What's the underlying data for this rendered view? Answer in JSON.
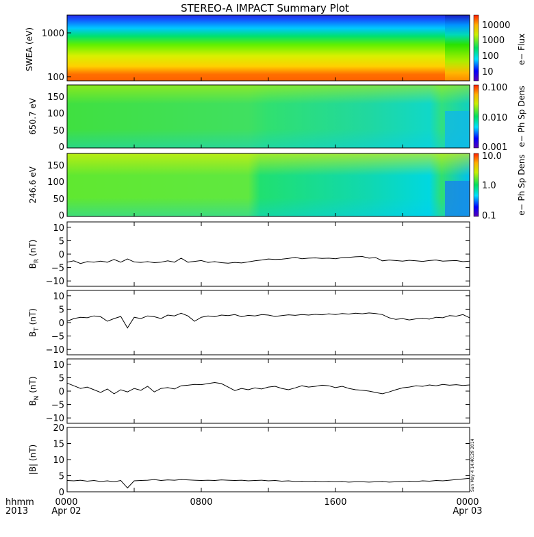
{
  "title": "STEREO-A IMPACT Summary Plot",
  "footer": {
    "hhmm": "hhmm",
    "year": "2013",
    "timestamp": "Sun May  4 14:40:29 2014"
  },
  "chart_data": [
    {
      "type": "heatmap",
      "id": "swea",
      "ylabel": "SWEA (eV)",
      "yscale": "log",
      "ylim": [
        90,
        2000
      ],
      "ytick_labels": [
        "100",
        "1000"
      ],
      "colorbar": {
        "label": "e− Flux",
        "scale": "log",
        "range": [
          3,
          30000
        ],
        "tick_labels": [
          "10000",
          "1000",
          "100",
          "10"
        ]
      },
      "note": "flux decreases with energy; brighter band near 150-250 eV"
    },
    {
      "type": "heatmap",
      "id": "pad650",
      "ylabel": "650.7 eV",
      "ylim": [
        0,
        180
      ],
      "ytick_labels": [
        "150",
        "100",
        "50",
        "0"
      ],
      "colorbar": {
        "label": "e− Ph Sp Dens",
        "scale": "log",
        "range": [
          0.001,
          0.1
        ],
        "tick_labels": [
          "0.100",
          "0.010",
          "0.001"
        ]
      }
    },
    {
      "type": "heatmap",
      "id": "pad246",
      "ylabel": "246.6 eV",
      "ylim": [
        0,
        180
      ],
      "ytick_labels": [
        "150",
        "100",
        "50",
        "0"
      ],
      "colorbar": {
        "label": "e− Ph Sp Dens",
        "scale": "log",
        "range": [
          0.1,
          10
        ],
        "tick_labels": [
          "10.0",
          "1.0",
          "0.1"
        ]
      }
    },
    {
      "type": "line",
      "id": "br",
      "ylabel_main": "B",
      "ylabel_sub": "R",
      "ylabel_unit": " (nT)",
      "ylim": [
        -12,
        12
      ],
      "ytick_labels": [
        "10",
        "5",
        "0",
        "−5",
        "−10"
      ],
      "x": [
        0,
        0.4,
        0.8,
        1.2,
        1.6,
        2.0,
        2.4,
        2.8,
        3.2,
        3.6,
        4.0,
        4.4,
        4.8,
        5.2,
        5.6,
        6.0,
        6.4,
        6.8,
        7.2,
        7.6,
        8.0,
        8.4,
        8.8,
        9.2,
        9.6,
        10.0,
        10.4,
        10.8,
        11.2,
        11.6,
        12.0,
        12.4,
        12.8,
        13.2,
        13.6,
        14.0,
        14.4,
        14.8,
        15.2,
        15.6,
        16.0,
        16.4,
        16.8,
        17.2,
        17.6,
        18.0,
        18.4,
        18.8,
        19.2,
        19.6,
        20.0,
        20.4,
        20.8,
        21.2,
        21.6,
        22.0,
        22.4,
        22.8,
        23.2,
        23.6,
        24.0
      ],
      "y": [
        -3,
        -2.5,
        -3.5,
        -2.8,
        -3,
        -2.6,
        -3,
        -2,
        -3,
        -1.8,
        -2.9,
        -3.1,
        -2.8,
        -3.2,
        -3,
        -2.5,
        -3,
        -1.5,
        -3,
        -2.7,
        -2.4,
        -3.1,
        -2.8,
        -3.2,
        -3.4,
        -3.1,
        -3.3,
        -2.9,
        -2.5,
        -2.2,
        -1.8,
        -2,
        -1.9,
        -1.6,
        -1.2,
        -1.7,
        -1.5,
        -1.4,
        -1.6,
        -1.5,
        -1.7,
        -1.3,
        -1.2,
        -1,
        -0.9,
        -1.5,
        -1.3,
        -2.5,
        -2.2,
        -2.4,
        -2.6,
        -2.3,
        -2.5,
        -2.7,
        -2.4,
        -2.2,
        -2.6,
        -2.5,
        -2.4,
        -2.8,
        -2.6
      ]
    },
    {
      "type": "line",
      "id": "bt",
      "ylabel_main": "B",
      "ylabel_sub": "T",
      "ylabel_unit": " (nT)",
      "ylim": [
        -12,
        12
      ],
      "ytick_labels": [
        "10",
        "5",
        "0",
        "−5",
        "−10"
      ],
      "x": [
        0,
        0.4,
        0.8,
        1.2,
        1.6,
        2.0,
        2.4,
        2.8,
        3.2,
        3.6,
        4.0,
        4.4,
        4.8,
        5.2,
        5.6,
        6.0,
        6.4,
        6.8,
        7.2,
        7.6,
        8.0,
        8.4,
        8.8,
        9.2,
        9.6,
        10.0,
        10.4,
        10.8,
        11.2,
        11.6,
        12.0,
        12.4,
        12.8,
        13.2,
        13.6,
        14.0,
        14.4,
        14.8,
        15.2,
        15.6,
        16.0,
        16.4,
        16.8,
        17.2,
        17.6,
        18.0,
        18.4,
        18.8,
        19.2,
        19.6,
        20.0,
        20.4,
        20.8,
        21.2,
        21.6,
        22.0,
        22.4,
        22.8,
        23.2,
        23.6,
        24.0
      ],
      "y": [
        0.5,
        1.5,
        2,
        1.8,
        2.5,
        2.2,
        0.5,
        1.5,
        2.3,
        -2,
        2,
        1.5,
        2.5,
        2.2,
        1.5,
        2.8,
        2.5,
        3.5,
        2.5,
        0.5,
        2,
        2.5,
        2.2,
        2.8,
        2.6,
        3,
        2.2,
        2.7,
        2.5,
        3,
        2.8,
        2.3,
        2.6,
        2.9,
        2.7,
        3,
        2.8,
        3.1,
        2.9,
        3.3,
        3,
        3.4,
        3.2,
        3.5,
        3.3,
        3.6,
        3.4,
        3,
        1.8,
        1.2,
        1.5,
        1,
        1.4,
        1.6,
        1.3,
        2,
        1.8,
        2.6,
        2.4,
        3,
        1.8
      ]
    },
    {
      "type": "line",
      "id": "bn",
      "ylabel_main": "B",
      "ylabel_sub": "N",
      "ylabel_unit": " (nT)",
      "ylim": [
        -12,
        12
      ],
      "ytick_labels": [
        "10",
        "5",
        "0",
        "−5",
        "−10"
      ],
      "x": [
        0,
        0.4,
        0.8,
        1.2,
        1.6,
        2.0,
        2.4,
        2.8,
        3.2,
        3.6,
        4.0,
        4.4,
        4.8,
        5.2,
        5.6,
        6.0,
        6.4,
        6.8,
        7.2,
        7.6,
        8.0,
        8.4,
        8.8,
        9.2,
        9.6,
        10.0,
        10.4,
        10.8,
        11.2,
        11.6,
        12.0,
        12.4,
        12.8,
        13.2,
        13.6,
        14.0,
        14.4,
        14.8,
        15.2,
        15.6,
        16.0,
        16.4,
        16.8,
        17.2,
        17.6,
        18.0,
        18.4,
        18.8,
        19.2,
        19.6,
        20.0,
        20.4,
        20.8,
        21.2,
        21.6,
        22.0,
        22.4,
        22.8,
        23.2,
        23.6,
        24.0
      ],
      "y": [
        3,
        2,
        1,
        1.5,
        0.5,
        -0.5,
        0.8,
        -1,
        0.5,
        -0.3,
        1,
        0.3,
        1.8,
        -0.3,
        1,
        1.3,
        0.8,
        2,
        2.2,
        2.5,
        2.4,
        2.8,
        3.2,
        2.8,
        1.5,
        0.2,
        1,
        0.5,
        1.2,
        0.8,
        1.5,
        1.8,
        1,
        0.5,
        1.2,
        2,
        1.5,
        1.8,
        2.2,
        2,
        1.3,
        1.8,
        1,
        0.5,
        0.3,
        0,
        -0.5,
        -1,
        -0.3,
        0.5,
        1.2,
        1.5,
        2,
        1.8,
        2.3,
        2,
        2.5,
        2.2,
        2.4,
        2.1,
        2.3
      ]
    },
    {
      "type": "line",
      "id": "btot",
      "ylabel_main": "|B| (nT)",
      "ylabel_sub": "",
      "ylabel_unit": "",
      "ylim": [
        0,
        20
      ],
      "ytick_labels": [
        "20",
        "15",
        "10",
        "5",
        "0"
      ],
      "x": [
        0,
        0.4,
        0.8,
        1.2,
        1.6,
        2.0,
        2.4,
        2.8,
        3.2,
        3.6,
        4.0,
        4.4,
        4.8,
        5.2,
        5.6,
        6.0,
        6.4,
        6.8,
        7.2,
        7.6,
        8.0,
        8.4,
        8.8,
        9.2,
        9.6,
        10.0,
        10.4,
        10.8,
        11.2,
        11.6,
        12.0,
        12.4,
        12.8,
        13.2,
        13.6,
        14.0,
        14.4,
        14.8,
        15.2,
        15.6,
        16.0,
        16.4,
        16.8,
        17.2,
        17.6,
        18.0,
        18.4,
        18.8,
        19.2,
        19.6,
        20.0,
        20.4,
        20.8,
        21.2,
        21.6,
        22.0,
        22.4,
        22.8,
        23.2,
        23.6,
        24.0
      ],
      "y": [
        3.5,
        3.4,
        3.6,
        3.3,
        3.5,
        3.2,
        3.4,
        3.1,
        3.5,
        1.2,
        3.4,
        3.5,
        3.6,
        3.8,
        3.5,
        3.7,
        3.6,
        3.8,
        3.7,
        3.6,
        3.5,
        3.6,
        3.5,
        3.7,
        3.6,
        3.5,
        3.6,
        3.4,
        3.5,
        3.6,
        3.4,
        3.5,
        3.3,
        3.4,
        3.2,
        3.3,
        3.2,
        3.3,
        3.1,
        3.2,
        3.1,
        3.2,
        3,
        3.1,
        3.1,
        3,
        3.1,
        3.2,
        3,
        3.1,
        3.2,
        3.3,
        3.2,
        3.4,
        3.3,
        3.5,
        3.4,
        3.6,
        3.8,
        4,
        4.2
      ]
    }
  ],
  "xaxis": {
    "range_hours": [
      0,
      24
    ],
    "ticks": [
      {
        "hour": 0,
        "label": "0000",
        "sublabel": "Apr 02"
      },
      {
        "hour": 8,
        "label": "0800",
        "sublabel": ""
      },
      {
        "hour": 16,
        "label": "1600",
        "sublabel": ""
      },
      {
        "hour": 24,
        "label": "0000",
        "sublabel": "Apr 03"
      }
    ]
  }
}
